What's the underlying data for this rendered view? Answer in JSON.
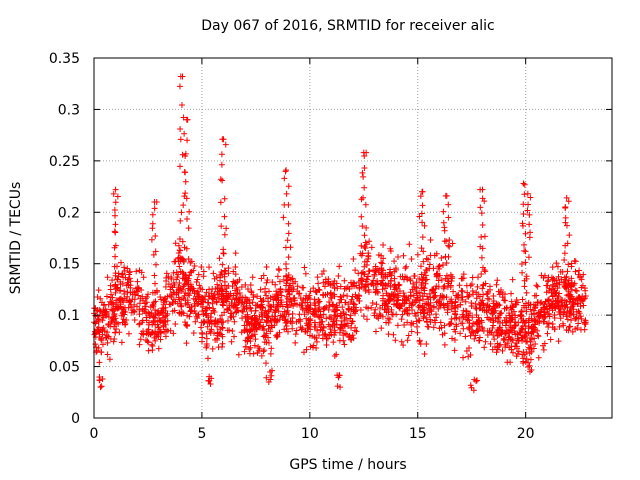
{
  "chart_data": {
    "type": "scatter",
    "title": "Day 067 of 2016, SRMTID for receiver alic",
    "xlabel": "GPS time / hours",
    "ylabel": "SRMTID / TECUs",
    "xlim": [
      0,
      24
    ],
    "ylim": [
      0,
      0.35
    ],
    "xticks": [
      0,
      5,
      10,
      15,
      20
    ],
    "xtick_labels": [
      "0",
      "5",
      "10",
      "15",
      "20"
    ],
    "yticks": [
      0,
      0.05,
      0.1,
      0.15,
      0.2,
      0.25,
      0.3,
      0.35
    ],
    "ytick_labels": [
      "0",
      "0.05",
      "0.1",
      "0.15",
      "0.2",
      "0.25",
      "0.3",
      "0.35"
    ],
    "grid": true,
    "marker": "+",
    "color": "#ff0000",
    "time_range_hours": [
      0,
      22.8
    ],
    "series": [
      {
        "name": "SRMTID",
        "envelope_hours": [
          0,
          0.5,
          1,
          1.5,
          2,
          2.5,
          3,
          3.5,
          4,
          4.5,
          5,
          5.5,
          6,
          6.5,
          7,
          7.5,
          8,
          8.5,
          9,
          9.5,
          10,
          10.5,
          11,
          11.5,
          12,
          12.5,
          13,
          13.5,
          14,
          14.5,
          15,
          15.5,
          16,
          16.5,
          17,
          17.5,
          18,
          18.5,
          19,
          19.5,
          20,
          20.5,
          21,
          21.5,
          22,
          22.5,
          22.8
        ],
        "envelope_typical": [
          0.095,
          0.085,
          0.11,
          0.12,
          0.115,
          0.095,
          0.09,
          0.11,
          0.13,
          0.115,
          0.11,
          0.1,
          0.12,
          0.11,
          0.1,
          0.095,
          0.1,
          0.11,
          0.12,
          0.105,
          0.1,
          0.1,
          0.105,
          0.095,
          0.11,
          0.14,
          0.13,
          0.125,
          0.12,
          0.115,
          0.11,
          0.115,
          0.12,
          0.115,
          0.11,
          0.1,
          0.105,
          0.1,
          0.095,
          0.09,
          0.08,
          0.1,
          0.11,
          0.12,
          0.115,
          0.11,
          0.11
        ],
        "envelope_spread": [
          0.025,
          0.035,
          0.04,
          0.035,
          0.035,
          0.03,
          0.03,
          0.035,
          0.04,
          0.035,
          0.035,
          0.035,
          0.04,
          0.035,
          0.035,
          0.035,
          0.035,
          0.04,
          0.04,
          0.035,
          0.035,
          0.035,
          0.035,
          0.035,
          0.035,
          0.04,
          0.04,
          0.04,
          0.04,
          0.04,
          0.04,
          0.04,
          0.04,
          0.04,
          0.04,
          0.035,
          0.035,
          0.035,
          0.035,
          0.035,
          0.03,
          0.035,
          0.035,
          0.035,
          0.035,
          0.035,
          0.035
        ],
        "peaks": [
          {
            "x": 1.0,
            "y": 0.222
          },
          {
            "x": 2.8,
            "y": 0.21
          },
          {
            "x": 4.1,
            "y": 0.332
          },
          {
            "x": 4.3,
            "y": 0.29
          },
          {
            "x": 6.0,
            "y": 0.271
          },
          {
            "x": 8.9,
            "y": 0.241
          },
          {
            "x": 12.5,
            "y": 0.258
          },
          {
            "x": 15.2,
            "y": 0.22
          },
          {
            "x": 16.3,
            "y": 0.216
          },
          {
            "x": 18.0,
            "y": 0.222
          },
          {
            "x": 19.9,
            "y": 0.228
          },
          {
            "x": 20.1,
            "y": 0.218
          },
          {
            "x": 21.9,
            "y": 0.214
          }
        ],
        "lows": [
          {
            "x": 0.3,
            "y": 0.03
          },
          {
            "x": 5.4,
            "y": 0.033
          },
          {
            "x": 8.1,
            "y": 0.035
          },
          {
            "x": 11.4,
            "y": 0.03
          },
          {
            "x": 17.6,
            "y": 0.027
          },
          {
            "x": 20.2,
            "y": 0.045
          }
        ]
      }
    ]
  }
}
